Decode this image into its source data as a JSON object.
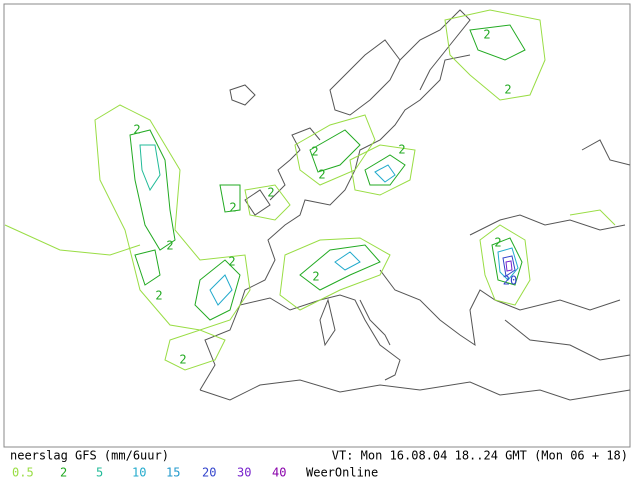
{
  "map": {
    "caption": "neerslag GFS (mm/6uur)",
    "valid_time": "VT: Mon 16.08.04 18..24 GMT (Mon 06 + 18)",
    "source": "WeerOnline",
    "legend": [
      {
        "label": 0.5,
        "color": "#99dd44"
      },
      {
        "label": 2,
        "color": "#22aa22"
      },
      {
        "label": 5,
        "color": "#22bb99"
      },
      {
        "label": 10,
        "color": "#22aacc"
      },
      {
        "label": 15,
        "color": "#2299cc"
      },
      {
        "label": 20,
        "color": "#3344cc"
      },
      {
        "label": 30,
        "color": "#7722cc"
      },
      {
        "label": 40,
        "color": "#8800aa"
      }
    ],
    "contour_labels": [
      2,
      2,
      2,
      2,
      2,
      2,
      2,
      2,
      2,
      2,
      2,
      2,
      2,
      2,
      20
    ]
  }
}
